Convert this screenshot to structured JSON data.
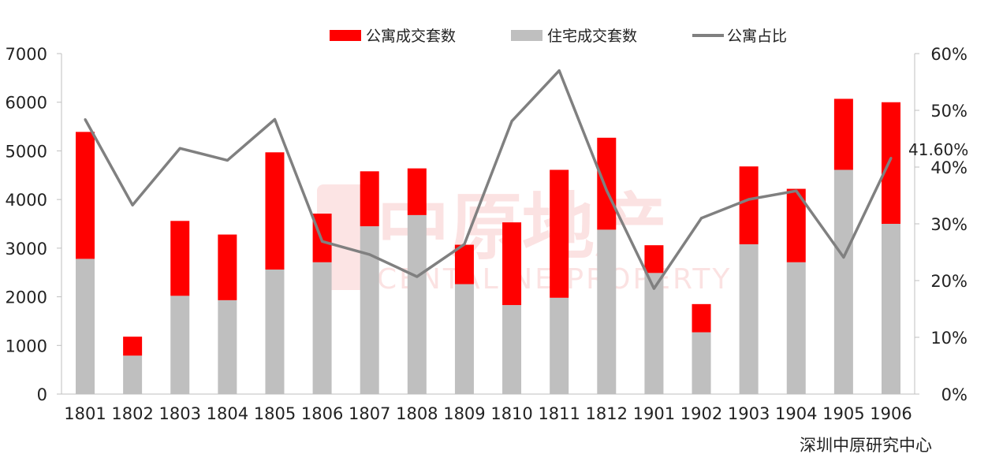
{
  "chart_data": {
    "type": "bar",
    "categories": [
      "1801",
      "1802",
      "1803",
      "1804",
      "1805",
      "1806",
      "1807",
      "1808",
      "1809",
      "1810",
      "1811",
      "1812",
      "1901",
      "1902",
      "1903",
      "1904",
      "1905",
      "1906"
    ],
    "series": [
      {
        "name": "住宅成交套数",
        "kind": "bar-stack-bottom",
        "color": "#bfbfbf",
        "values": [
          2780,
          790,
          2020,
          1930,
          2560,
          2710,
          3450,
          3680,
          2260,
          1830,
          1980,
          3380,
          2490,
          1270,
          3080,
          2710,
          4610,
          3500
        ]
      },
      {
        "name": "公寓成交套数",
        "kind": "bar-stack-top",
        "color": "#ff0000",
        "values": [
          2610,
          390,
          1540,
          1350,
          2410,
          1000,
          1130,
          960,
          810,
          1700,
          2630,
          1890,
          570,
          580,
          1600,
          1510,
          1460,
          2500
        ]
      },
      {
        "name": "公寓占比",
        "kind": "line",
        "axis": "right",
        "color": "#808080",
        "values": [
          48.4,
          33.3,
          43.3,
          41.2,
          48.4,
          26.9,
          24.6,
          20.7,
          26.4,
          48.1,
          57.0,
          35.9,
          18.6,
          31.0,
          34.3,
          35.8,
          24.1,
          41.6
        ]
      }
    ],
    "y_left": {
      "min": 0,
      "max": 7000,
      "ticks": [
        "0",
        "1000",
        "2000",
        "3000",
        "4000",
        "5000",
        "6000",
        "7000"
      ]
    },
    "y_right": {
      "min": 0,
      "max": 60,
      "ticks": [
        "0%",
        "10%",
        "20%",
        "30%",
        "40%",
        "50%",
        "60%"
      ]
    },
    "annotation": {
      "text": "41.60%"
    },
    "legend": {
      "position": "top",
      "items": [
        "公寓成交套数",
        "住宅成交套数",
        "公寓占比"
      ]
    },
    "grid": false
  },
  "watermark": {
    "cn": "中原地产",
    "en": "CENTALINE PROPERTY"
  },
  "source": "深圳中原研究中心"
}
